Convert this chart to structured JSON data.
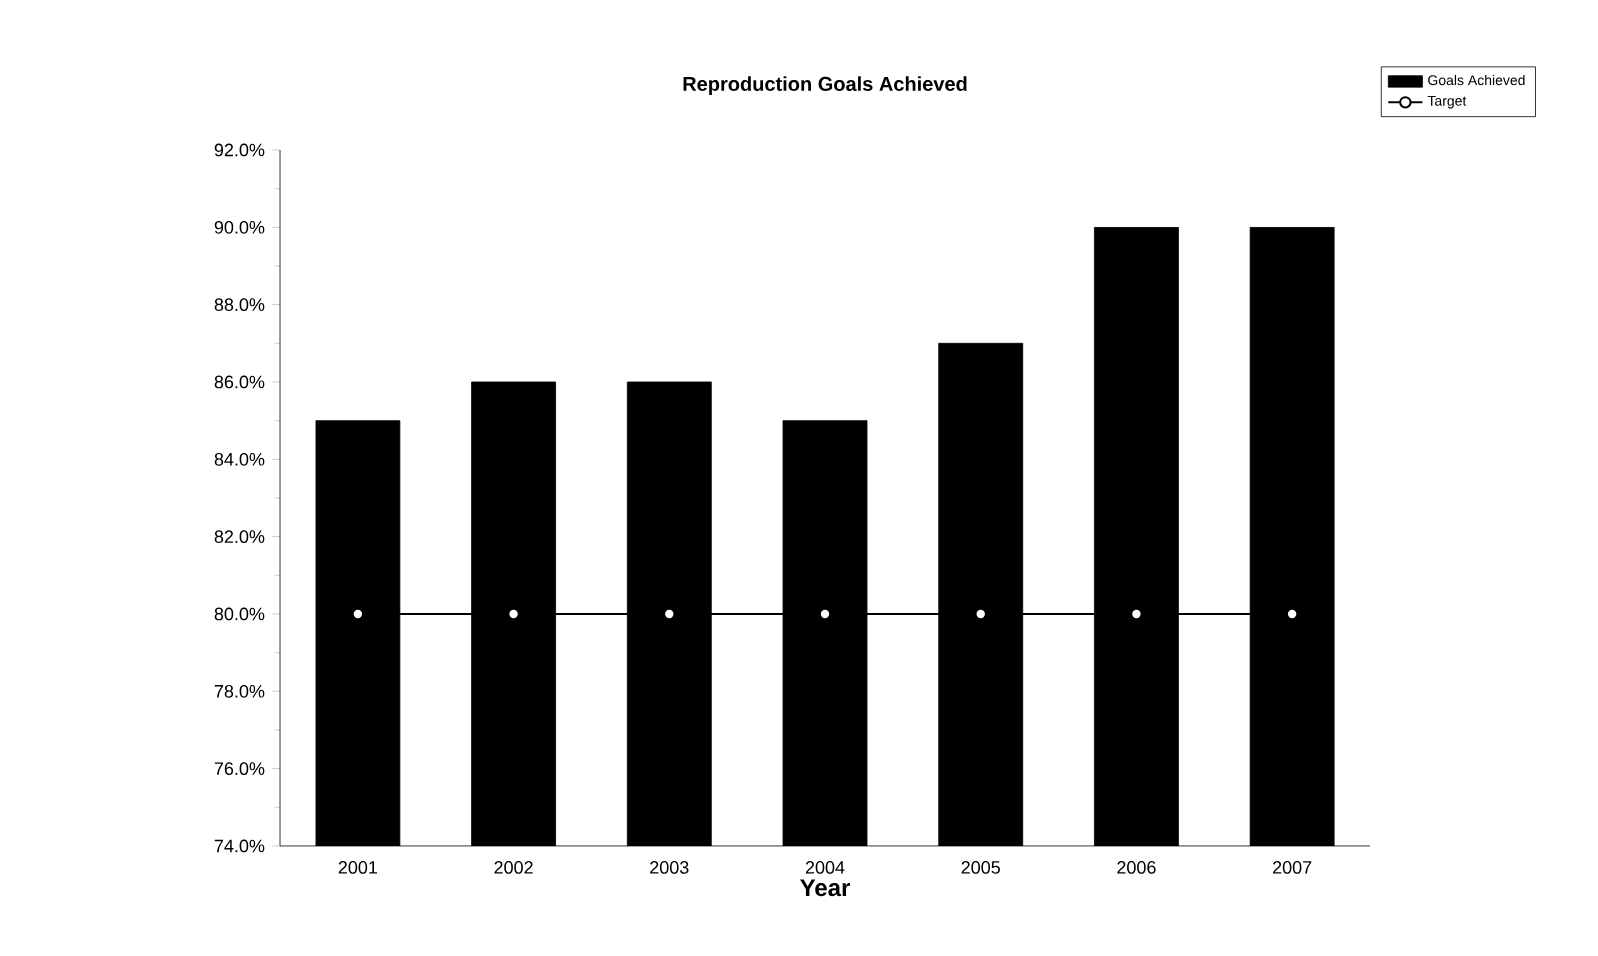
{
  "chart_data": {
    "type": "bar",
    "title": "Reproduction Goals Achieved",
    "xlabel": "Year",
    "categories": [
      "2001",
      "2002",
      "2003",
      "2004",
      "2005",
      "2006",
      "2007"
    ],
    "series": [
      {
        "name": "Goals Achieved",
        "color": "#000000",
        "values": [
          85,
          86,
          86,
          85,
          87,
          90,
          90
        ]
      },
      {
        "name": "Target",
        "type": "line",
        "color": "#000000",
        "marker": "circle",
        "values": [
          80,
          80,
          80,
          80,
          80,
          80,
          80
        ]
      }
    ],
    "ylim": [
      74,
      92
    ],
    "yticks": [
      {
        "value": 74,
        "label": "74.0%"
      },
      {
        "value": 76,
        "label": "76.0%"
      },
      {
        "value": 78,
        "label": "78.0%"
      },
      {
        "value": 80,
        "label": "80.0%"
      },
      {
        "value": 82,
        "label": "82.0%"
      },
      {
        "value": 84,
        "label": "84.0%"
      },
      {
        "value": 86,
        "label": "86.0%"
      },
      {
        "value": 88,
        "label": "88.0%"
      },
      {
        "value": 90,
        "label": "90.0%"
      },
      {
        "value": 92,
        "label": "92.0%"
      }
    ],
    "legend": "top right",
    "grid": false
  }
}
